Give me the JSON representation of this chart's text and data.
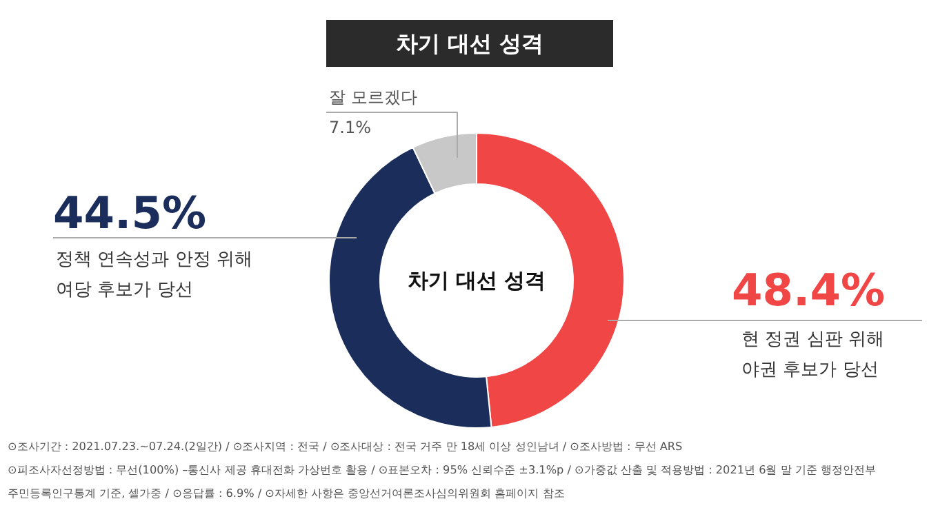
{
  "chart_data": {
    "type": "donut",
    "title": "차기 대선 성격",
    "categories": [
      "현 정권 심판 위해\n야권 후보가 당선",
      "정책 연속성과 안정 위해\n여당 후보가 당선",
      "잘 모르겠다"
    ],
    "values": [
      48.4,
      44.5,
      7.1
    ],
    "value_labels": [
      "48.4%",
      "44.5%",
      "7.1%"
    ],
    "colors": [
      "#f04646",
      "#1b2d5a",
      "#c8c8c8"
    ],
    "annotations": [
      "차기 대선 성격",
      "⊙조사기간 : 2021.07.23.~07.24.(2일간)  / ⊙조사지역 : 전국 / ⊙조사대상 : 전국 거주 만 18세 이상 성인남녀 / ⊙조사방법 : 무선 ARS",
      "⊙피조사자선정방법 : 무선(100%) –통신사 제공 휴대전화 가상번호 활용 / ⊙표본오차 : 95% 신뢰수준 ±3.1%p / ⊙가중값 산출 및 적용방법 : 2021년 6월 말 기준 행정안전부",
      "주민등록인구통계 기준, 셀가중 / ⊙응답률 : 6.9% / ⊙자세한 사항은 중앙선거여론조사심의위원회 홈페이지 참조"
    ]
  }
}
